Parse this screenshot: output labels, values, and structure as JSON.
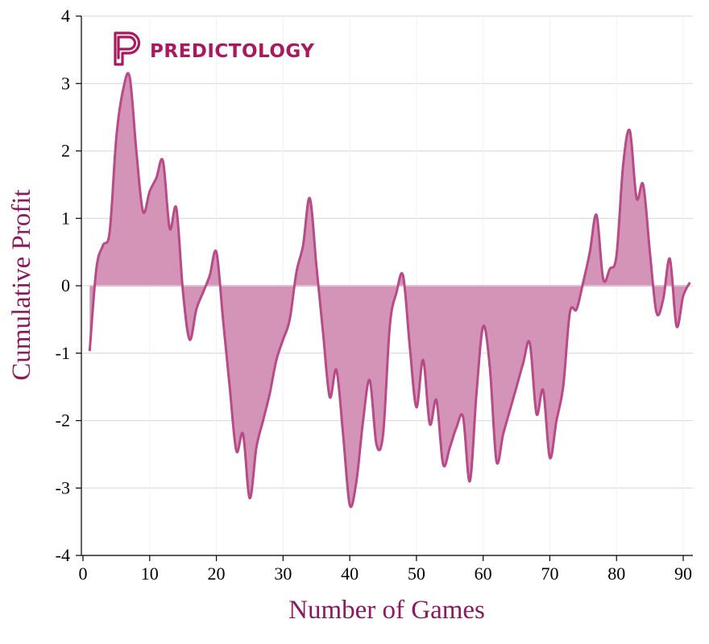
{
  "chart_data": {
    "type": "area",
    "xlabel": "Number of Games",
    "ylabel": "Cumulative Profit",
    "xlim": [
      0,
      91
    ],
    "ylim": [
      -4,
      4
    ],
    "x_ticks": [
      0,
      10,
      20,
      30,
      40,
      50,
      60,
      70,
      80,
      90
    ],
    "y_ticks": [
      4,
      3,
      2,
      1,
      0,
      -1,
      -2,
      -3,
      -4
    ],
    "grid": true,
    "baseline": 0,
    "series": [
      {
        "x": [
          1,
          2,
          3,
          4,
          5,
          6,
          7,
          8,
          9,
          10,
          11,
          12,
          13,
          14,
          15,
          16,
          17,
          18,
          19,
          20,
          21,
          22,
          23,
          24,
          25,
          26,
          27,
          28,
          29,
          30,
          31,
          32,
          33,
          34,
          35,
          36,
          37,
          38,
          39,
          40,
          41,
          42,
          43,
          44,
          45,
          46,
          47,
          48,
          49,
          50,
          51,
          52,
          53,
          54,
          55,
          56,
          57,
          58,
          59,
          60,
          61,
          62,
          63,
          64,
          65,
          66,
          67,
          68,
          69,
          70,
          71,
          72,
          73,
          74,
          75,
          76,
          77,
          78,
          79,
          80,
          81,
          82,
          83,
          84,
          85,
          86,
          87,
          88,
          89,
          90,
          91
        ],
        "values": [
          -0.97,
          0.25,
          0.6,
          0.8,
          2.2,
          2.9,
          3.1,
          2.0,
          1.1,
          1.4,
          1.6,
          1.85,
          0.85,
          1.15,
          -0.1,
          -0.8,
          -0.35,
          -0.1,
          0.15,
          0.5,
          -0.5,
          -1.5,
          -2.45,
          -2.2,
          -3.15,
          -2.4,
          -2.0,
          -1.6,
          -1.1,
          -0.8,
          -0.5,
          0.2,
          0.6,
          1.3,
          0.3,
          -0.7,
          -1.65,
          -1.25,
          -2.2,
          -3.25,
          -2.9,
          -2.0,
          -1.4,
          -2.35,
          -2.2,
          -0.6,
          -0.1,
          0.15,
          -0.9,
          -1.8,
          -1.1,
          -2.05,
          -1.7,
          -2.65,
          -2.4,
          -2.1,
          -1.95,
          -2.9,
          -1.6,
          -0.6,
          -1.2,
          -2.6,
          -2.2,
          -1.85,
          -1.5,
          -1.15,
          -0.85,
          -1.9,
          -1.55,
          -2.55,
          -2.0,
          -1.5,
          -0.4,
          -0.35,
          0.05,
          0.5,
          1.05,
          0.1,
          0.25,
          0.45,
          1.8,
          2.3,
          1.3,
          1.5,
          0.5,
          -0.4,
          -0.2,
          0.4,
          -0.6,
          -0.15,
          0.05
        ]
      }
    ],
    "colors": {
      "line": "#b84a88",
      "fill": "#d394b7",
      "baseline": "#e3bcd2",
      "axis_title": "#8b1a5e",
      "grid": "#dddddd",
      "brand": "#a8195e"
    }
  },
  "brand": {
    "name": "PREDICTOLOGY",
    "icon": "predictology-logo-icon"
  }
}
